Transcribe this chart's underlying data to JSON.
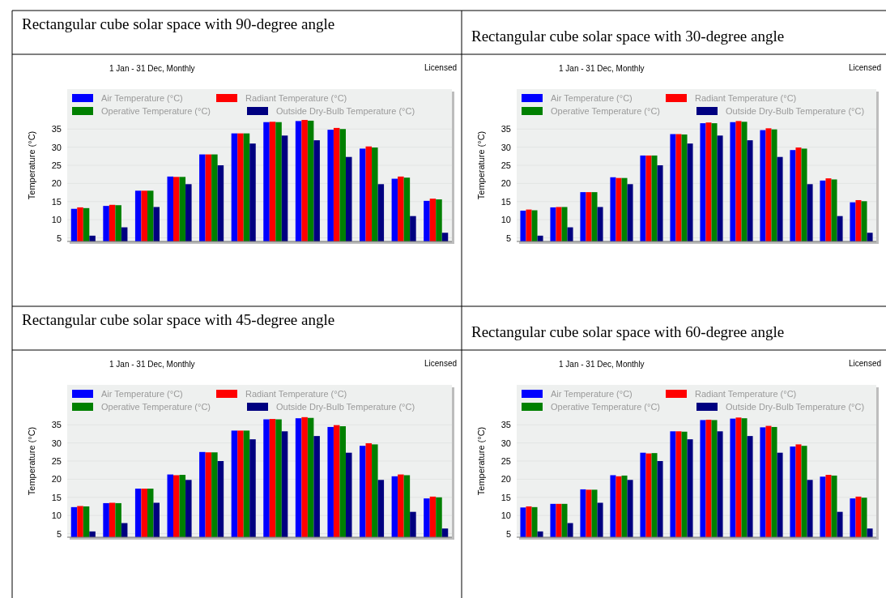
{
  "chart_data": [
    {
      "type": "bar",
      "title": "Rectangular cube solar space with 90-degree angle",
      "subtitle": "1 Jan - 31 Dec, Monthly",
      "annotations": [
        "Licensed"
      ],
      "ylabel": "Temperature (°C)",
      "categories": [
        null,
        null,
        null,
        null,
        null,
        null,
        null,
        null,
        null,
        null,
        null,
        null
      ],
      "ylim": [
        4,
        46
      ],
      "yticks": [
        5,
        10,
        15,
        20,
        25,
        30,
        35
      ],
      "grid": "y",
      "legend": "top",
      "series": [
        {
          "name": "Air Temperature (°C)",
          "color": "#0000ff",
          "values": [
            13.0,
            13.8,
            18.0,
            21.9,
            28.0,
            33.8,
            36.9,
            37.2,
            34.8,
            29.6,
            21.3,
            15.2
          ]
        },
        {
          "name": "Radiant Temperature (°C)",
          "color": "#ff0000",
          "values": [
            13.4,
            14.1,
            18.0,
            21.8,
            28.0,
            33.8,
            37.0,
            37.5,
            35.3,
            30.2,
            21.9,
            15.8
          ]
        },
        {
          "name": "Operative Temperature (°C)",
          "color": "#008000",
          "values": [
            13.2,
            14.0,
            18.0,
            21.8,
            28.0,
            33.8,
            36.9,
            37.3,
            35.0,
            29.9,
            21.6,
            15.6
          ]
        },
        {
          "name": "Outside Dry-Bulb Temperature (°C)",
          "color": "#000080",
          "values": [
            5.6,
            7.9,
            13.5,
            19.8,
            25.0,
            31.0,
            33.2,
            31.9,
            27.3,
            19.8,
            11.0,
            6.4
          ]
        }
      ]
    },
    {
      "type": "bar",
      "title": "Rectangular cube solar space with 30-degree angle",
      "subtitle": "1 Jan - 31 Dec, Monthly",
      "annotations": [
        "Licensed"
      ],
      "ylabel": "Temperature (°C)",
      "categories": [
        null,
        null,
        null,
        null,
        null,
        null,
        null,
        null,
        null,
        null,
        null,
        null
      ],
      "ylim": [
        4,
        46
      ],
      "yticks": [
        5,
        10,
        15,
        20,
        25,
        30,
        35
      ],
      "grid": "y",
      "legend": "top",
      "series": [
        {
          "name": "Air Temperature (°C)",
          "color": "#0000ff",
          "values": [
            12.5,
            13.4,
            17.6,
            21.7,
            27.7,
            33.6,
            36.6,
            36.9,
            34.7,
            29.2,
            20.8,
            14.8
          ]
        },
        {
          "name": "Radiant Temperature (°C)",
          "color": "#ff0000",
          "values": [
            12.8,
            13.5,
            17.6,
            21.5,
            27.7,
            33.6,
            36.8,
            37.2,
            35.2,
            29.9,
            21.4,
            15.4
          ]
        },
        {
          "name": "Operative Temperature (°C)",
          "color": "#008000",
          "values": [
            12.6,
            13.5,
            17.6,
            21.5,
            27.7,
            33.5,
            36.6,
            37.0,
            34.9,
            29.6,
            21.1,
            15.1
          ]
        },
        {
          "name": "Outside Dry-Bulb Temperature (°C)",
          "color": "#000080",
          "values": [
            5.6,
            7.9,
            13.5,
            19.8,
            25.0,
            31.0,
            33.2,
            31.9,
            27.3,
            19.8,
            11.0,
            6.4
          ]
        }
      ]
    },
    {
      "type": "bar",
      "title": "Rectangular cube solar space with 45-degree angle",
      "subtitle": "1 Jan - 31 Dec, Monthly",
      "annotations": [
        "Licensed"
      ],
      "ylabel": "Temperature (°C)",
      "categories": [
        null,
        null,
        null,
        null,
        null,
        null,
        null,
        null,
        null,
        null,
        null,
        null
      ],
      "ylim": [
        4,
        46
      ],
      "yticks": [
        5,
        10,
        15,
        20,
        25,
        30,
        35
      ],
      "grid": "y",
      "legend": "top",
      "series": [
        {
          "name": "Air Temperature (°C)",
          "color": "#0000ff",
          "values": [
            12.3,
            13.4,
            17.4,
            21.3,
            27.5,
            33.4,
            36.5,
            36.8,
            34.4,
            29.2,
            20.8,
            14.7
          ]
        },
        {
          "name": "Radiant Temperature (°C)",
          "color": "#ff0000",
          "values": [
            12.6,
            13.5,
            17.4,
            21.1,
            27.4,
            33.4,
            36.6,
            37.1,
            34.9,
            29.9,
            21.3,
            15.2
          ]
        },
        {
          "name": "Operative Temperature (°C)",
          "color": "#008000",
          "values": [
            12.5,
            13.4,
            17.4,
            21.2,
            27.4,
            33.4,
            36.5,
            36.9,
            34.6,
            29.6,
            21.1,
            15.0
          ]
        },
        {
          "name": "Outside Dry-Bulb Temperature (°C)",
          "color": "#000080",
          "values": [
            5.6,
            7.9,
            13.5,
            19.8,
            25.0,
            31.0,
            33.2,
            31.9,
            27.3,
            19.8,
            11.0,
            6.4
          ]
        }
      ]
    },
    {
      "type": "bar",
      "title": "Rectangular cube solar space with 60-degree angle",
      "subtitle": "1 Jan - 31 Dec, Monthly",
      "annotations": [
        "Licensed"
      ],
      "ylabel": "Temperature (°C)",
      "categories": [
        null,
        null,
        null,
        null,
        null,
        null,
        null,
        null,
        null,
        null,
        null,
        null
      ],
      "ylim": [
        4,
        46
      ],
      "yticks": [
        5,
        10,
        15,
        20,
        25,
        30,
        35
      ],
      "grid": "y",
      "legend": "top",
      "series": [
        {
          "name": "Air Temperature (°C)",
          "color": "#0000ff",
          "values": [
            12.2,
            13.2,
            17.2,
            21.1,
            27.3,
            33.2,
            36.3,
            36.7,
            34.3,
            29.0,
            20.7,
            14.7
          ]
        },
        {
          "name": "Radiant Temperature (°C)",
          "color": "#ff0000",
          "values": [
            12.5,
            13.2,
            17.1,
            20.8,
            27.1,
            33.2,
            36.4,
            37.0,
            34.7,
            29.6,
            21.2,
            15.2
          ]
        },
        {
          "name": "Operative Temperature (°C)",
          "color": "#008000",
          "values": [
            12.3,
            13.2,
            17.1,
            21.0,
            27.2,
            33.1,
            36.3,
            36.8,
            34.4,
            29.2,
            21.0,
            14.9
          ]
        },
        {
          "name": "Outside Dry-Bulb Temperature (°C)",
          "color": "#000080",
          "values": [
            5.6,
            7.9,
            13.5,
            19.8,
            25.0,
            31.0,
            33.2,
            31.9,
            27.3,
            19.8,
            11.0,
            6.4
          ]
        }
      ]
    }
  ]
}
